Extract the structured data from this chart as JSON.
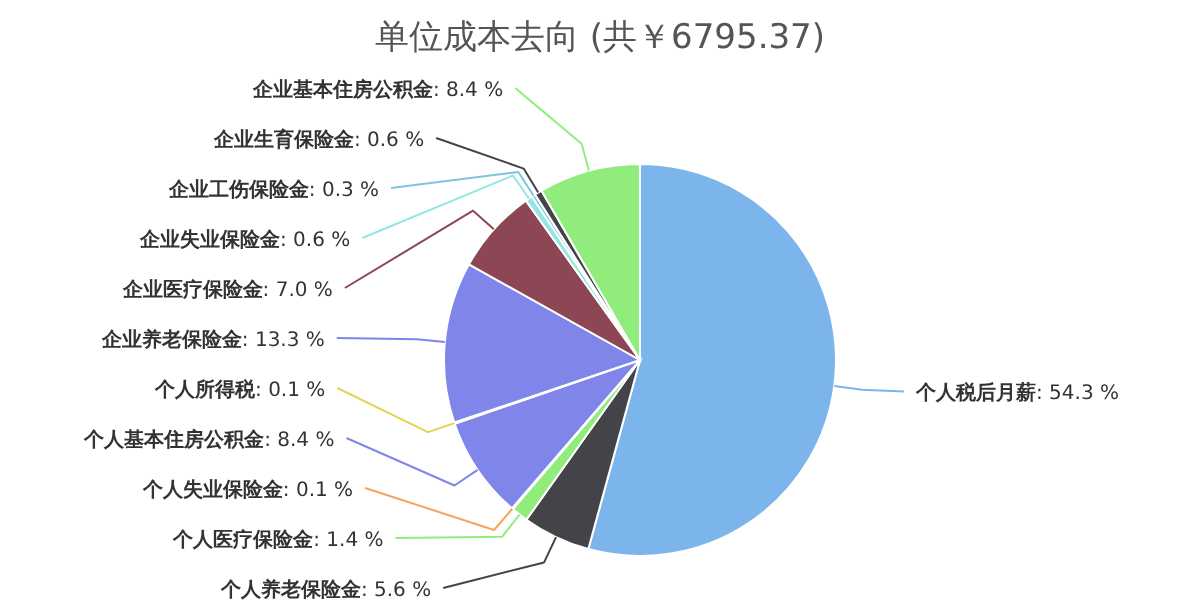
{
  "chart_data": {
    "type": "pie",
    "title": "单位成本去向 (共￥6795.37)",
    "categories": [
      "个人税后月薪",
      "个人养老保险金",
      "个人医疗保险金",
      "个人失业保险金",
      "个人基本住房公积金",
      "个人所得税",
      "企业养老保险金",
      "企业医疗保险金",
      "企业失业保险金",
      "企业工伤保险金",
      "企业生育保险金",
      "企业基本住房公积金"
    ],
    "values": [
      54.3,
      5.6,
      1.4,
      0.1,
      8.4,
      0.1,
      13.3,
      7.0,
      0.6,
      0.3,
      0.6,
      8.4
    ],
    "value_labels": [
      ": 54.3 %",
      ": 5.6 %",
      ": 1.4 %",
      ": 0.1 %",
      ": 8.4 %",
      ": 0.1 %",
      ": 13.3 %",
      ": 7.0 %",
      ": 0.6 %",
      ": 0.3 %",
      ": 0.6 %",
      ": 8.4 %"
    ],
    "colors": [
      "#7cb5ec",
      "#434348",
      "#90ed7d",
      "#f7a35c",
      "#8085e9",
      "#e4d354",
      "#8085e9",
      "#8d4653",
      "#91e8e1",
      "#7cc5e0",
      "#434348",
      "#90ed7d"
    ]
  }
}
